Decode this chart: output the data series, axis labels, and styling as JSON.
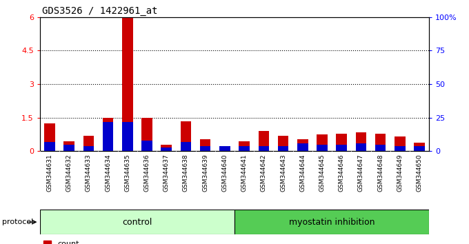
{
  "title": "GDS3526 / 1422961_at",
  "samples": [
    "GSM344631",
    "GSM344632",
    "GSM344633",
    "GSM344634",
    "GSM344635",
    "GSM344636",
    "GSM344637",
    "GSM344638",
    "GSM344639",
    "GSM344640",
    "GSM344641",
    "GSM344642",
    "GSM344643",
    "GSM344644",
    "GSM344645",
    "GSM344646",
    "GSM344647",
    "GSM344648",
    "GSM344649",
    "GSM344650"
  ],
  "count_values": [
    1.25,
    0.45,
    0.7,
    1.5,
    6.0,
    1.5,
    0.3,
    1.35,
    0.55,
    0.05,
    0.45,
    0.9,
    0.7,
    0.55,
    0.75,
    0.8,
    0.85,
    0.8,
    0.65,
    0.4
  ],
  "percentile_values_pct": [
    7,
    5,
    4,
    22,
    22,
    8,
    3,
    7,
    4,
    4,
    4,
    4,
    4,
    6,
    5,
    5,
    6,
    5,
    4,
    4
  ],
  "control_count": 10,
  "myostatin_count": 10,
  "protocol_label": "protocol",
  "control_label": "control",
  "myostatin_label": "myostatin inhibition",
  "ylim_left": [
    0,
    6
  ],
  "ylim_right": [
    0,
    100
  ],
  "left_yticks": [
    0,
    1.5,
    3.0,
    4.5,
    6.0
  ],
  "left_ytick_labels": [
    "0",
    "1.5",
    "3",
    "4.5",
    "6"
  ],
  "right_yticks": [
    0,
    25,
    50,
    75,
    100
  ],
  "right_ytick_labels": [
    "0",
    "25",
    "50",
    "75",
    "100%"
  ],
  "bar_color_red": "#cc0000",
  "bar_color_blue": "#0000cc",
  "control_bg": "#ccffcc",
  "myostatin_bg": "#55cc55",
  "xtick_bg": "#cccccc",
  "spine_color": "#000000",
  "title_fontsize": 10,
  "tick_fontsize": 6.5,
  "axis_fontsize": 8,
  "legend_fontsize": 8
}
